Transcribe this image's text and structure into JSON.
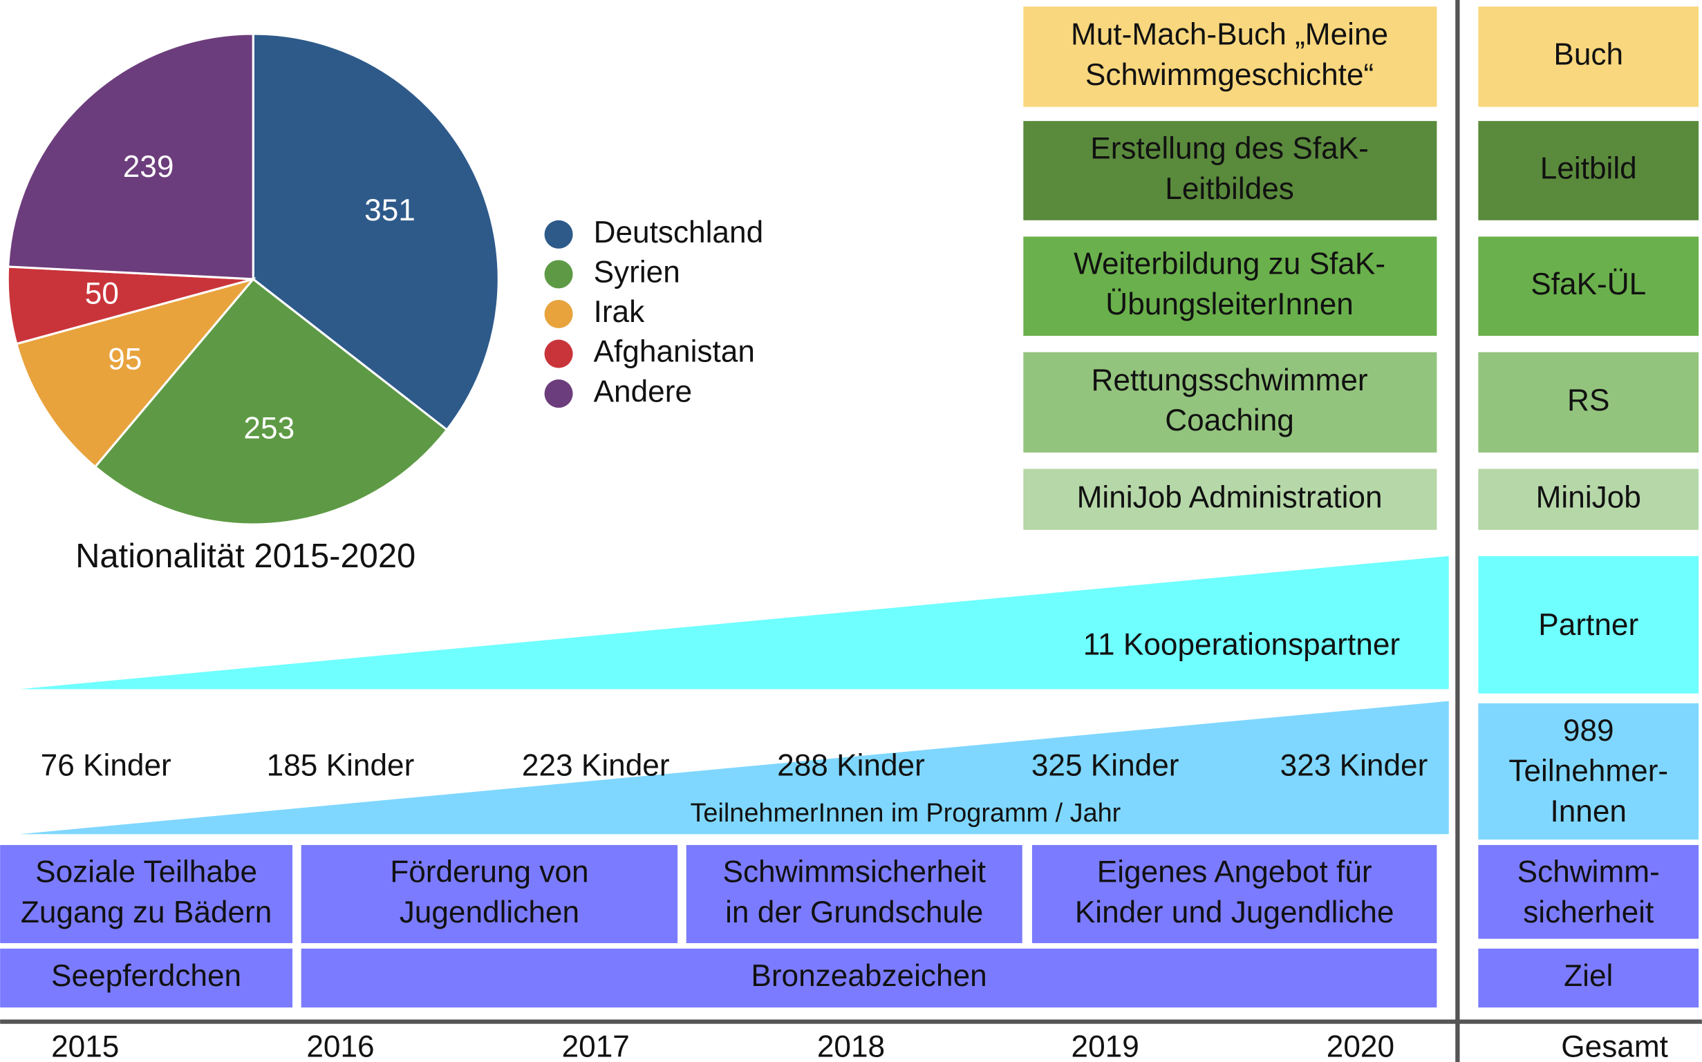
{
  "chart_data": {
    "type": "pie",
    "title": "Nationalität 2015-2020",
    "categories": [
      "Deutschland",
      "Syrien",
      "Irak",
      "Afghanistan",
      "Andere"
    ],
    "values": [
      351,
      253,
      95,
      50,
      239
    ],
    "colors": [
      "#2e5a8a",
      "#5e9a45",
      "#e8a33d",
      "#c9343a",
      "#6c3d7c"
    ]
  },
  "activities": [
    {
      "lines": [
        "Mut-Mach-Buch „Meine",
        "Schwimmgeschichte“"
      ],
      "summary": "Buch"
    },
    {
      "lines": [
        "Erstellung des SfaK-",
        "Leitbildes"
      ],
      "summary": "Leitbild"
    },
    {
      "lines": [
        "Weiterbildung zu SfaK-",
        "ÜbungsleiterInnen"
      ],
      "summary": "SfaK-ÜL"
    },
    {
      "lines": [
        "Rettungsschwimmer",
        "Coaching"
      ],
      "summary": "RS"
    },
    {
      "lines": [
        "MiniJob Administration"
      ],
      "summary": "MiniJob"
    }
  ],
  "partners": {
    "label": "11 Kooperationspartner",
    "summary": "Partner"
  },
  "participants": {
    "per_year": [
      "76 Kinder",
      "185 Kinder",
      "223 Kinder",
      "288 Kinder",
      "325 Kinder",
      "323 Kinder"
    ],
    "label": "TeilnehmerInnen im Programm / Jahr",
    "summary": [
      "989",
      "Teilnehmer-",
      "Innen"
    ]
  },
  "goals": [
    {
      "lines": [
        "Soziale Teilhabe",
        "Zugang zu Bädern"
      ]
    },
    {
      "lines": [
        "Förderung von",
        "Jugendlichen"
      ]
    },
    {
      "lines": [
        "Schwimmsicherheit",
        "in der Grundschule"
      ]
    },
    {
      "lines": [
        "Eigenes Angebot für",
        "Kinder und Jugendliche"
      ]
    }
  ],
  "goals_summary": [
    "Schwimm-",
    "sicherheit"
  ],
  "badges": [
    "Seepferdchen",
    "Bronzeabzeichen"
  ],
  "badges_summary": "Ziel",
  "years": [
    "2015",
    "2016",
    "2017",
    "2018",
    "2019",
    "2020"
  ],
  "total_label": "Gesamt"
}
